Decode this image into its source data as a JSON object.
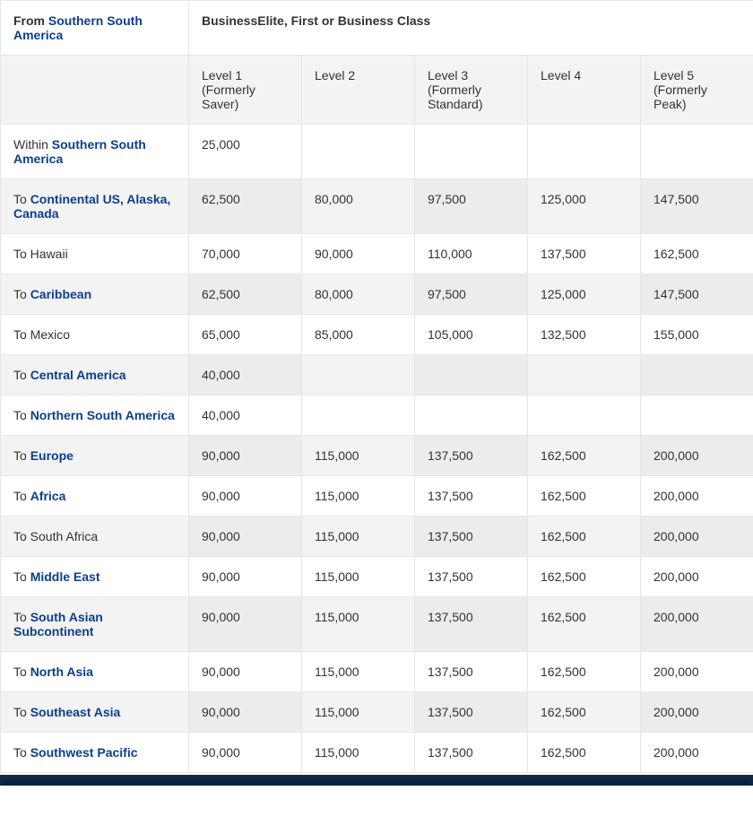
{
  "header": {
    "origin_prefix": "From ",
    "origin_link": "Southern South America",
    "class_label": "BusinessElite, First or Business Class"
  },
  "columns": [
    {
      "title": "Level 1",
      "sub": "(Formerly Saver)"
    },
    {
      "title": "Level 2",
      "sub": ""
    },
    {
      "title": "Level 3",
      "sub": "(Formerly Standard)"
    },
    {
      "title": "Level 4",
      "sub": ""
    },
    {
      "title": "Level 5",
      "sub": "(Formerly Peak)"
    }
  ],
  "rows": [
    {
      "prefix": "Within ",
      "link": "Southern South America",
      "suffix": "",
      "linked": true,
      "values": [
        "25,000",
        "",
        "",
        "",
        ""
      ]
    },
    {
      "prefix": "To ",
      "link": "Continental US, Alaska, Canada",
      "suffix": "",
      "linked": true,
      "values": [
        "62,500",
        "80,000",
        "97,500",
        "125,000",
        "147,500"
      ]
    },
    {
      "prefix": "To Hawaii",
      "link": "",
      "suffix": "",
      "linked": false,
      "values": [
        "70,000",
        "90,000",
        "110,000",
        "137,500",
        "162,500"
      ]
    },
    {
      "prefix": "To ",
      "link": "Caribbean",
      "suffix": "",
      "linked": true,
      "values": [
        "62,500",
        "80,000",
        "97,500",
        "125,000",
        "147,500"
      ]
    },
    {
      "prefix": "To Mexico",
      "link": "",
      "suffix": "",
      "linked": false,
      "values": [
        "65,000",
        "85,000",
        "105,000",
        "132,500",
        "155,000"
      ]
    },
    {
      "prefix": "To ",
      "link": "Central America",
      "suffix": "",
      "linked": true,
      "values": [
        "40,000",
        "",
        "",
        "",
        ""
      ]
    },
    {
      "prefix": "To ",
      "link": "Northern South America",
      "suffix": "",
      "linked": true,
      "values": [
        "40,000",
        "",
        "",
        "",
        ""
      ]
    },
    {
      "prefix": "To ",
      "link": "Europe",
      "suffix": "",
      "linked": true,
      "values": [
        "90,000",
        "115,000",
        "137,500",
        "162,500",
        "200,000"
      ]
    },
    {
      "prefix": "To ",
      "link": "Africa",
      "suffix": "",
      "linked": true,
      "values": [
        "90,000",
        "115,000",
        "137,500",
        "162,500",
        "200,000"
      ]
    },
    {
      "prefix": "To South Africa",
      "link": "",
      "suffix": "",
      "linked": false,
      "values": [
        "90,000",
        "115,000",
        "137,500",
        "162,500",
        "200,000"
      ]
    },
    {
      "prefix": "To ",
      "link": "Middle East",
      "suffix": "",
      "linked": true,
      "values": [
        "90,000",
        "115,000",
        "137,500",
        "162,500",
        "200,000"
      ]
    },
    {
      "prefix": "To ",
      "link": "South Asian Subcontinent",
      "suffix": "",
      "linked": true,
      "values": [
        "90,000",
        "115,000",
        "137,500",
        "162,500",
        "200,000"
      ]
    },
    {
      "prefix": "To ",
      "link": "North Asia",
      "suffix": "",
      "linked": true,
      "values": [
        "90,000",
        "115,000",
        "137,500",
        "162,500",
        "200,000"
      ]
    },
    {
      "prefix": "To ",
      "link": "Southeast Asia",
      "suffix": "",
      "linked": true,
      "values": [
        "90,000",
        "115,000",
        "137,500",
        "162,500",
        "200,000"
      ]
    },
    {
      "prefix": "To ",
      "link": "Southwest Pacific",
      "suffix": "",
      "linked": true,
      "values": [
        "90,000",
        "115,000",
        "137,500",
        "162,500",
        "200,000"
      ]
    }
  ],
  "style": {
    "link_color": "#0b3e91",
    "header_bg": "#f3f3f3",
    "border_color": "#e6e6e6",
    "text_color": "#333333",
    "footer_bg": "#0a1f3d"
  }
}
